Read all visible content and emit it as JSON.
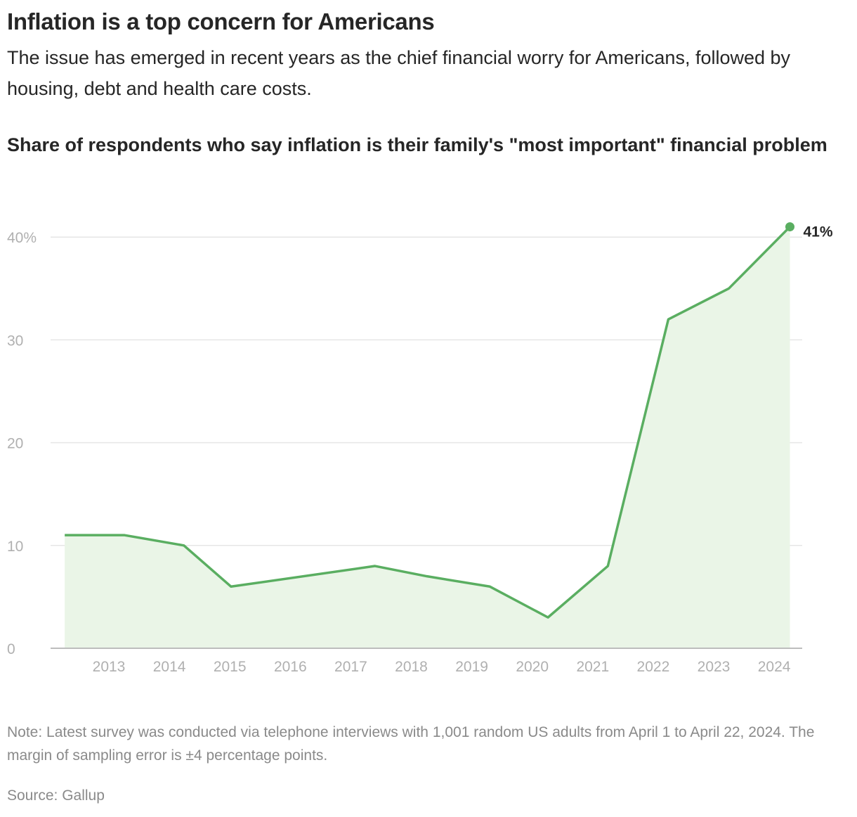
{
  "title": "Inflation is a top concern for Americans",
  "subtitle": "The issue has emerged in recent years as the chief financial worry for Americans, followed by housing, debt and health care costs.",
  "note": "Note: Latest survey was conducted via telephone interviews with 1,001 random US adults from April 1 to April 22, 2024. The margin of sampling error is ±4 percentage points.",
  "source": "Source: Gallup",
  "colors": {
    "line": "#5aae61",
    "fill": "#eaf5e7",
    "grid": "#e6e6e6",
    "axis_text": "#b0b0b0"
  },
  "chart_data": {
    "type": "area",
    "title": "Share of respondents who say inflation is their family's \"most important\" financial problem",
    "xlabel": "",
    "ylabel": "",
    "x": [
      2012.27,
      2013.26,
      2014.24,
      2015.02,
      2017.4,
      2018.26,
      2019.3,
      2020.26,
      2021.25,
      2022.25,
      2023.25,
      2024.26
    ],
    "values": [
      11,
      11,
      10,
      6,
      8,
      7,
      6,
      3,
      8,
      32,
      35,
      41
    ],
    "ylim": [
      0,
      40
    ],
    "yticks": [
      0,
      10,
      20,
      30,
      40
    ],
    "ytick_labels": [
      "0",
      "10",
      "20",
      "30",
      "40%"
    ],
    "xticks": [
      2013,
      2014,
      2015,
      2016,
      2017,
      2018,
      2019,
      2020,
      2021,
      2022,
      2023,
      2024
    ],
    "xtick_labels": [
      "2013",
      "2014",
      "2015",
      "2016",
      "2017",
      "2018",
      "2019",
      "2020",
      "2021",
      "2022",
      "2023",
      "2024"
    ],
    "grid": true,
    "end_label": "41%"
  }
}
